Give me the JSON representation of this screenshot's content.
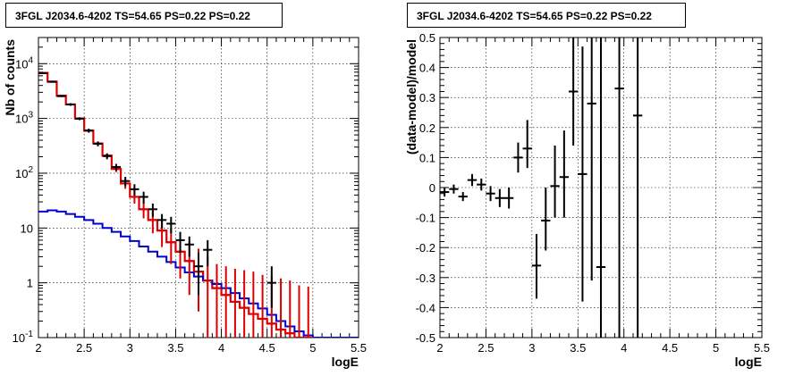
{
  "chart_data": [
    {
      "type": "scatter",
      "title": "3FGL J2034.6-4202 TS=54.65 PS=0.22 PS=0.22",
      "xlabel": "logE",
      "ylabel": "Nb of counts",
      "xlim": [
        2,
        5.5
      ],
      "ylim": [
        0.1,
        30000
      ],
      "yscale": "log",
      "grid": true,
      "xticks": [
        "2",
        "2.5",
        "3",
        "3.5",
        "4",
        "4.5",
        "5",
        "5.5"
      ],
      "yticks": [
        {
          "value": 0.1,
          "base": "10",
          "exp": "-1"
        },
        {
          "value": 1,
          "base": "1",
          "exp": ""
        },
        {
          "value": 10,
          "base": "10",
          "exp": ""
        },
        {
          "value": 100,
          "base": "10",
          "exp": "2"
        },
        {
          "value": 1000,
          "base": "10",
          "exp": "3"
        },
        {
          "value": 10000,
          "base": "10",
          "exp": "4"
        }
      ],
      "series": [
        {
          "kind": "model_step_red",
          "color": "#dd0000",
          "edges": [
            2.0,
            2.1,
            2.2,
            2.3,
            2.4,
            2.5,
            2.6,
            2.7,
            2.8,
            2.9,
            3.0,
            3.1,
            3.2,
            3.3,
            3.4,
            3.5,
            3.6,
            3.7,
            3.8,
            3.9,
            4.0,
            4.1,
            4.2,
            4.3,
            4.4,
            4.5,
            4.6,
            4.7,
            4.8,
            4.9,
            5.0
          ],
          "values": [
            6800,
            4700,
            2600,
            1800,
            1000,
            600,
            350,
            210,
            120,
            65,
            37,
            22,
            14,
            9,
            5.5,
            3.7,
            2.5,
            1.6,
            1.1,
            0.8,
            0.6,
            0.45,
            0.35,
            0.27,
            0.22,
            0.18,
            0.14,
            0.12,
            0.1,
            0.1
          ]
        },
        {
          "kind": "source_step_blue",
          "color": "#0000cc",
          "edges": [
            2.0,
            2.1,
            2.2,
            2.3,
            2.4,
            2.5,
            2.6,
            2.7,
            2.8,
            2.9,
            3.0,
            3.1,
            3.2,
            3.3,
            3.4,
            3.5,
            3.6,
            3.7,
            3.8,
            3.9,
            4.0,
            4.1,
            4.2,
            4.3,
            4.4,
            4.5,
            4.6,
            4.7,
            4.8,
            4.9,
            5.0,
            5.1,
            5.2,
            5.3,
            5.4,
            5.5
          ],
          "values": [
            20,
            21,
            20,
            18,
            16,
            14,
            12,
            10,
            8.5,
            7,
            5.8,
            4.6,
            3.7,
            3.0,
            2.4,
            1.9,
            1.55,
            1.3,
            1.1,
            0.95,
            0.8,
            0.65,
            0.52,
            0.42,
            0.34,
            0.26,
            0.2,
            0.16,
            0.13,
            0.11,
            0.1,
            0.1,
            0.1,
            0.1,
            0.1
          ]
        },
        {
          "kind": "model_points_red",
          "color": "#dd0000",
          "x": [
            2.05,
            2.15,
            2.25,
            2.35,
            2.45,
            2.55,
            2.65,
            2.75,
            2.85,
            2.95,
            3.05,
            3.15,
            3.25,
            3.35,
            3.45,
            3.55,
            3.65,
            3.75,
            3.85,
            3.95,
            4.05,
            4.15,
            4.25,
            4.35,
            4.45,
            4.55,
            4.65,
            4.75,
            4.85,
            4.95
          ],
          "y": [
            6800,
            4700,
            2600,
            1800,
            1000,
            600,
            350,
            210,
            120,
            65,
            37,
            22,
            14,
            9,
            5.5,
            3.7,
            2.5,
            1.6,
            1.1,
            0.8,
            0.6,
            0.45,
            0.35,
            0.27,
            0.22,
            0.18,
            0.14,
            0.12,
            0.1,
            0.1
          ],
          "ylow": [
            6600,
            4600,
            2500,
            1750,
            960,
            570,
            325,
            190,
            105,
            52,
            28,
            15,
            8,
            4.5,
            2.2,
            1.2,
            0.6,
            0.3,
            0.1,
            0.1,
            0.1,
            0.1,
            0.1,
            0.1,
            0.1,
            0.1,
            0.1,
            0.1,
            0.1,
            0.1
          ],
          "yhigh": [
            7000,
            4800,
            2700,
            1850,
            1040,
            630,
            375,
            230,
            135,
            80,
            48,
            31,
            22,
            15,
            10,
            7.5,
            5.5,
            4.2,
            3.0,
            2.2,
            2.0,
            1.8,
            1.7,
            1.6,
            1.4,
            1.3,
            1.2,
            1.1,
            0.9,
            0.85
          ]
        },
        {
          "kind": "data_points_black",
          "color": "#000000",
          "x": [
            2.05,
            2.15,
            2.25,
            2.35,
            2.45,
            2.55,
            2.65,
            2.75,
            2.85,
            2.95,
            3.05,
            3.15,
            3.25,
            3.35,
            3.45,
            3.55,
            3.65,
            3.75,
            3.85,
            4.55
          ],
          "y": [
            6700,
            4650,
            2550,
            1800,
            990,
            600,
            345,
            205,
            130,
            72,
            51,
            37,
            22,
            14,
            12,
            6,
            5,
            2,
            4,
            1
          ],
          "ylow": [
            6550,
            4500,
            2450,
            1700,
            930,
            550,
            310,
            180,
            112,
            58,
            39,
            28,
            16,
            10,
            8,
            3.5,
            3,
            0.6,
            2,
            0.35
          ],
          "yhigh": [
            6850,
            4800,
            2650,
            1900,
            1050,
            650,
            380,
            230,
            148,
            86,
            63,
            46,
            28,
            18,
            16,
            8.5,
            7,
            3.5,
            6,
            2
          ]
        }
      ]
    },
    {
      "type": "scatter",
      "title": "3FGL J2034.6-4202 TS=54.65 PS=0.22 PS=0.22",
      "xlabel": "logE",
      "ylabel": "(data-model)/model",
      "xlim": [
        2,
        5.5
      ],
      "ylim": [
        -0.5,
        0.5
      ],
      "grid": true,
      "xticks": [
        "2",
        "2.5",
        "3",
        "3.5",
        "4",
        "4.5",
        "5",
        "5.5"
      ],
      "yticks": [
        "-0.5",
        "-0.4",
        "-0.3",
        "-0.2",
        "-0.1",
        "0",
        "0.1",
        "0.2",
        "0.3",
        "0.4",
        "0.5"
      ],
      "series": [
        {
          "kind": "residual_points_black",
          "color": "#000000",
          "x": [
            2.05,
            2.15,
            2.25,
            2.35,
            2.45,
            2.55,
            2.65,
            2.75,
            2.85,
            2.95,
            3.05,
            3.15,
            3.25,
            3.35,
            3.45,
            3.55,
            3.65,
            3.75,
            3.95,
            4.15
          ],
          "y": [
            -0.015,
            -0.005,
            -0.03,
            0.025,
            0.01,
            -0.02,
            -0.035,
            -0.035,
            0.1,
            0.13,
            -0.26,
            -0.11,
            0.005,
            0.035,
            0.32,
            0.045,
            0.28,
            -0.265,
            0.33,
            0.24
          ],
          "ylow": [
            -0.03,
            -0.02,
            -0.045,
            0.005,
            -0.01,
            -0.045,
            -0.065,
            -0.07,
            0.05,
            0.065,
            -0.37,
            -0.21,
            -0.1,
            -0.1,
            0.14,
            -0.38,
            -0.31,
            -0.5,
            -0.5,
            -0.5
          ],
          "yhigh": [
            0.0,
            0.01,
            -0.015,
            0.045,
            0.03,
            0.005,
            -0.005,
            0.0,
            0.15,
            0.225,
            -0.155,
            0.0,
            0.14,
            0.19,
            0.5,
            0.47,
            0.5,
            0.5,
            0.5,
            0.5
          ]
        }
      ]
    }
  ]
}
